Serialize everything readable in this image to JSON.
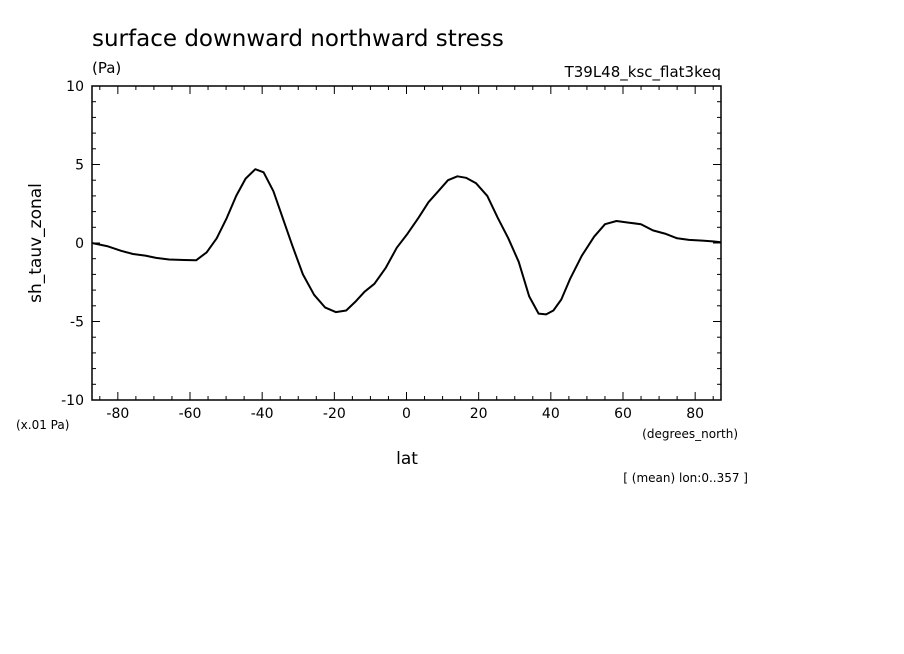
{
  "chart_data": {
    "type": "line",
    "title": "surface downward northward stress",
    "units": "(Pa)",
    "experiment": "T39L48_ksc_flat3keq",
    "ylabel": "sh_tauv_zonal",
    "xlabel": "lat",
    "x_units": "(degrees_north)",
    "y_scale_note": "(x.01 Pa)",
    "footer": "[ (mean) lon:0..357 ]",
    "xlim": [
      -87.16,
      87.16
    ],
    "ylim": [
      -10,
      10
    ],
    "x_ticks": [
      -80,
      -60,
      -40,
      -20,
      0,
      20,
      40,
      60,
      80
    ],
    "x_tick_labels": [
      "-80",
      "-60",
      "-40",
      "-20",
      "0",
      "20",
      "40",
      "60",
      "80"
    ],
    "y_ticks": [
      -10,
      -5,
      0,
      5,
      10
    ],
    "y_tick_labels": [
      "-10",
      "-5",
      "0",
      "5",
      "10"
    ],
    "grid": false,
    "line_color": "#000000",
    "series": [
      {
        "x": [
          -87.2,
          -83.0,
          -79.1,
          -75.8,
          -72.4,
          -69.4,
          -65.8,
          -61.7,
          -58.3,
          -55.4,
          -52.6,
          -49.8,
          -47.2,
          -44.6,
          -41.9,
          -39.6,
          -36.9,
          -34.3,
          -31.6,
          -28.7,
          -25.6,
          -22.6,
          -19.6,
          -16.7,
          -14.0,
          -11.6,
          -8.9,
          -5.8,
          -2.7,
          0.3,
          3.3,
          6.1,
          8.8,
          11.5,
          14.1,
          16.5,
          19.3,
          22.4,
          25.3,
          28.2,
          31.1,
          34.0,
          36.6,
          38.7,
          40.7,
          42.9,
          45.3,
          48.6,
          52.0,
          55.0,
          58.2,
          61.5,
          65.0,
          68.3,
          71.6,
          75.0,
          78.3,
          82.0,
          84.9,
          87.2
        ],
        "y": [
          0.0,
          -0.2,
          -0.5,
          -0.7,
          -0.8,
          -0.95,
          -1.05,
          -1.08,
          -1.1,
          -0.6,
          0.3,
          1.6,
          3.0,
          4.1,
          4.7,
          4.5,
          3.3,
          1.6,
          -0.2,
          -2.0,
          -3.3,
          -4.1,
          -4.4,
          -4.3,
          -3.7,
          -3.1,
          -2.6,
          -1.6,
          -0.3,
          0.6,
          1.6,
          2.6,
          3.3,
          4.0,
          4.25,
          4.15,
          3.8,
          3.0,
          1.6,
          0.3,
          -1.2,
          -3.4,
          -4.5,
          -4.55,
          -4.3,
          -3.6,
          -2.3,
          -0.8,
          0.4,
          1.2,
          1.4,
          1.3,
          1.2,
          0.8,
          0.6,
          0.3,
          0.2,
          0.15,
          0.1,
          0.05
        ]
      }
    ]
  }
}
